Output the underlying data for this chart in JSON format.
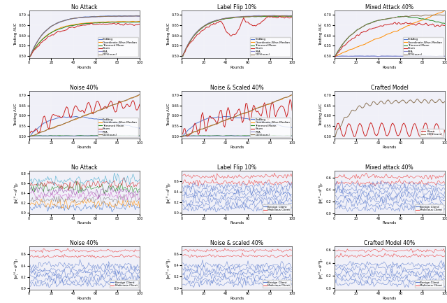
{
  "titles_row1": [
    "No Attack",
    "Label Flip 10%",
    "Mixed Attack 40%"
  ],
  "titles_row2": [
    "Noise 40%",
    "Noise & Scaled 40%",
    "Crafted Model"
  ],
  "titles_row3": [
    "No Attack",
    "Label Flip 10%",
    "Mixed attack 40%"
  ],
  "titles_row4": [
    "Noise 40%",
    "Noise & scaled 40%",
    "Crafted Model 40%"
  ],
  "ylabel_auc": "Testing AUC",
  "xlabel": "Rounds",
  "legend_auc": [
    "FedAvg",
    "Coordinate-Wise-Median",
    "Trimmed Mean",
    "Krum",
    "RFA",
    "DDS(ours)"
  ],
  "legend_diff": [
    "Benign Client",
    "Malicious Client"
  ],
  "colors_auc": [
    "#5577CC",
    "#FF8C00",
    "#228B22",
    "#CC2222",
    "#8888CC",
    "#8B7355"
  ],
  "colors_diff_benign": "#5577CC",
  "colors_diff_malicious": "#EE5555",
  "rounds": 100,
  "seed": 42,
  "bg_color": "#f0f0f8"
}
